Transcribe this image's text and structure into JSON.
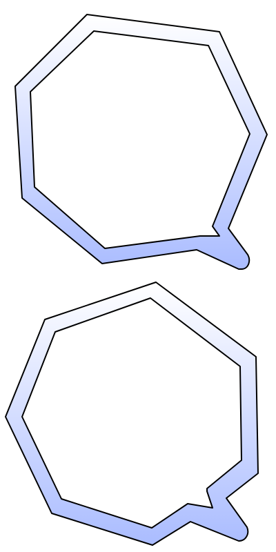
{
  "colors": {
    "background": "#ffffff",
    "stroke": "#000000",
    "gradient_top": "#ffffff",
    "gradient_bottom": "#aabcff"
  },
  "shapes": [
    {
      "name": "callout-shape-top",
      "kind": "heptagon-outline-with-tail",
      "tail_direction": "bottom-right"
    },
    {
      "name": "callout-shape-bottom",
      "kind": "heptagon-outline-with-tail",
      "tail_direction": "bottom-right"
    }
  ]
}
